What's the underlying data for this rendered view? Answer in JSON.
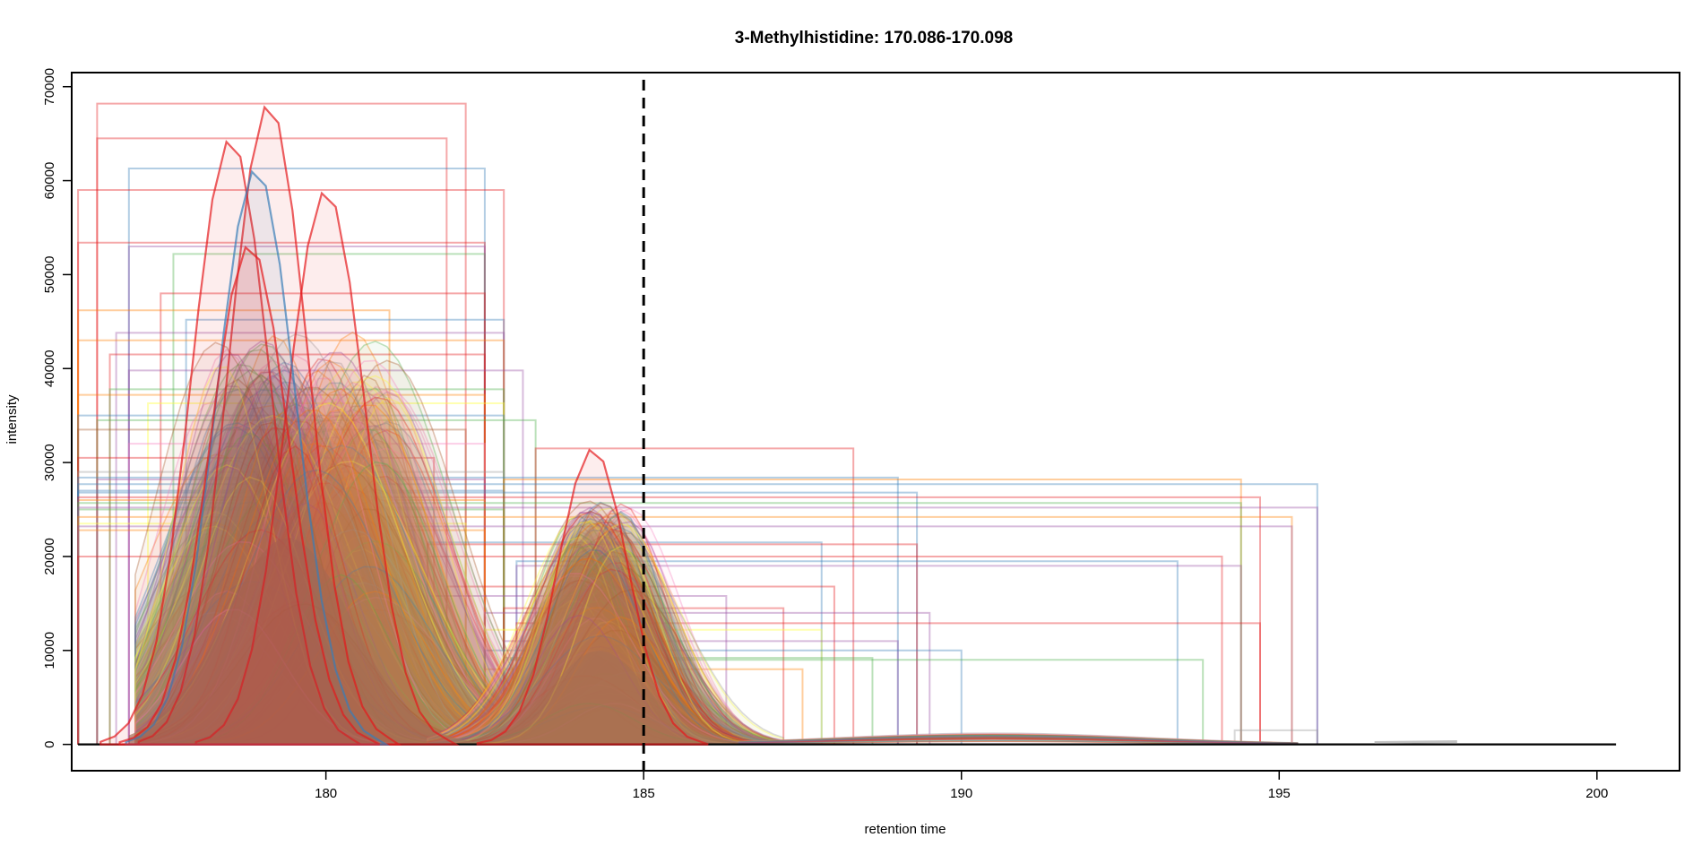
{
  "chart_data": {
    "type": "line",
    "title": "3-Methylhistidine: 170.086-170.098",
    "xlabel": "retention time",
    "ylabel": "intensity",
    "xlim": [
      176,
      201.3
    ],
    "ylim": [
      -2800,
      71500
    ],
    "x_ticks": [
      180,
      185,
      190,
      195,
      200
    ],
    "x_tick_labels": [
      "180",
      "185",
      "190",
      "195",
      "200"
    ],
    "y_ticks": [
      0,
      10000,
      20000,
      30000,
      40000,
      50000,
      60000,
      70000
    ],
    "y_tick_labels": [
      "0",
      "10000",
      "20000",
      "30000",
      "40000",
      "50000",
      "60000",
      "70000"
    ],
    "vertical_reference_line": {
      "x": 185,
      "style": "dashed",
      "color": "#000000"
    },
    "grid": false,
    "legend": "none",
    "palette": [
      "#e41a1c",
      "#377eb8",
      "#4daf4a",
      "#984ea3",
      "#ff7f00",
      "#ffff33",
      "#a65628",
      "#f781bf",
      "#999999"
    ],
    "peak_groups": [
      {
        "name": "peak-group-1",
        "apex_rt_range": [
          178.2,
          181.0
        ],
        "typical_apex_rt": 179.3,
        "typical_apex_intensity": 33000,
        "max_apex_intensity": 68200,
        "rt_start_range": [
          176.1,
          178.0
        ],
        "rt_end_range": [
          181.8,
          183.0
        ]
      },
      {
        "name": "peak-group-2",
        "apex_rt_range": [
          183.9,
          184.8
        ],
        "typical_apex_rt": 184.3,
        "typical_apex_intensity": 15000,
        "max_apex_intensity": 31500,
        "rt_start_range": [
          181.6,
          183.0
        ],
        "rt_end_range": [
          185.3,
          195.6
        ]
      },
      {
        "name": "tail-region",
        "apex_rt_range": [
          188.0,
          193.0
        ],
        "typical_apex_intensity": 1000,
        "rt_end": 200.3
      }
    ],
    "highlighted_peaks": [
      {
        "apex_rt": 179.1,
        "apex_intensity": 68200,
        "color": "#e41a1c"
      },
      {
        "apex_rt": 178.5,
        "apex_intensity": 64500,
        "color": "#e41a1c"
      },
      {
        "apex_rt": 180.0,
        "apex_intensity": 59000,
        "color": "#e41a1c"
      },
      {
        "apex_rt": 178.9,
        "apex_intensity": 61300,
        "color": "#377eb8"
      },
      {
        "apex_rt": 178.8,
        "apex_intensity": 53200,
        "color": "#e41a1c"
      },
      {
        "apex_rt": 184.2,
        "apex_intensity": 31500,
        "color": "#e41a1c"
      }
    ],
    "integration_boxes": [
      {
        "x": [
          176.4,
          182.2
        ],
        "y_top": 68200,
        "color": "#e41a1c"
      },
      {
        "x": [
          176.4,
          181.9
        ],
        "y_top": 64500,
        "color": "#e41a1c"
      },
      {
        "x": [
          176.9,
          182.5
        ],
        "y_top": 61300,
        "color": "#377eb8"
      },
      {
        "x": [
          176.1,
          182.8
        ],
        "y_top": 59000,
        "color": "#e41a1c"
      },
      {
        "x": [
          176.1,
          182.5
        ],
        "y_top": 53400,
        "color": "#e41a1c"
      },
      {
        "x": [
          177.6,
          182.5
        ],
        "y_top": 52200,
        "color": "#4daf4a"
      },
      {
        "x": [
          176.9,
          182.5
        ],
        "y_top": 53000,
        "color": "#984ea3"
      },
      {
        "x": [
          177.4,
          182.5
        ],
        "y_top": 48000,
        "color": "#e41a1c"
      },
      {
        "x": [
          176.1,
          181.0
        ],
        "y_top": 46200,
        "color": "#ff7f00"
      },
      {
        "x": [
          177.8,
          182.8
        ],
        "y_top": 45200,
        "color": "#377eb8"
      },
      {
        "x": [
          176.7,
          182.8
        ],
        "y_top": 43800,
        "color": "#984ea3"
      },
      {
        "x": [
          176.1,
          182.8
        ],
        "y_top": 43000,
        "color": "#ff7f00"
      },
      {
        "x": [
          176.6,
          182.5
        ],
        "y_top": 41500,
        "color": "#e41a1c"
      },
      {
        "x": [
          176.9,
          183.1
        ],
        "y_top": 39800,
        "color": "#984ea3"
      },
      {
        "x": [
          176.6,
          182.8
        ],
        "y_top": 37800,
        "color": "#4daf4a"
      },
      {
        "x": [
          176.1,
          182.5
        ],
        "y_top": 37200,
        "color": "#ff7f00"
      },
      {
        "x": [
          177.2,
          182.8
        ],
        "y_top": 36300,
        "color": "#ffff33"
      },
      {
        "x": [
          176.1,
          182.8
        ],
        "y_top": 35000,
        "color": "#377eb8"
      },
      {
        "x": [
          176.4,
          183.3
        ],
        "y_top": 34500,
        "color": "#4daf4a"
      },
      {
        "x": [
          176.1,
          182.2
        ],
        "y_top": 33500,
        "color": "#a65628"
      },
      {
        "x": [
          176.9,
          182.5
        ],
        "y_top": 32000,
        "color": "#f781bf"
      },
      {
        "x": [
          176.1,
          181.7
        ],
        "y_top": 30500,
        "color": "#e41a1c"
      },
      {
        "x": [
          176.1,
          182.8
        ],
        "y_top": 29000,
        "color": "#999999"
      },
      {
        "x": [
          176.4,
          182.5
        ],
        "y_top": 28200,
        "color": "#984ea3"
      },
      {
        "x": [
          176.1,
          182.8
        ],
        "y_top": 27000,
        "color": "#377eb8"
      },
      {
        "x": [
          176.1,
          182.5
        ],
        "y_top": 26000,
        "color": "#ff7f00"
      },
      {
        "x": [
          176.1,
          182.8
        ],
        "y_top": 25000,
        "color": "#4daf4a"
      },
      {
        "x": [
          176.1,
          182.2
        ],
        "y_top": 23500,
        "color": "#ffff33"
      },
      {
        "x": [
          176.1,
          182.5
        ],
        "y_top": 22800,
        "color": "#ff7f00"
      },
      {
        "x": [
          183.3,
          188.3
        ],
        "y_top": 31500,
        "color": "#e41a1c"
      },
      {
        "x": [
          176.1,
          189.0
        ],
        "y_top": 28400,
        "color": "#377eb8"
      },
      {
        "x": [
          182.8,
          194.4
        ],
        "y_top": 28200,
        "color": "#ff7f00"
      },
      {
        "x": [
          176.1,
          195.6
        ],
        "y_top": 27700,
        "color": "#377eb8"
      },
      {
        "x": [
          176.1,
          189.3
        ],
        "y_top": 26800,
        "color": "#377eb8"
      },
      {
        "x": [
          176.1,
          194.7
        ],
        "y_top": 26300,
        "color": "#e41a1c"
      },
      {
        "x": [
          176.1,
          194.4
        ],
        "y_top": 25700,
        "color": "#4daf4a"
      },
      {
        "x": [
          176.1,
          195.6
        ],
        "y_top": 25200,
        "color": "#984ea3"
      },
      {
        "x": [
          176.1,
          195.2
        ],
        "y_top": 24200,
        "color": "#ff7f00"
      },
      {
        "x": [
          176.1,
          195.2
        ],
        "y_top": 23200,
        "color": "#984ea3"
      },
      {
        "x": [
          181.6,
          187.8
        ],
        "y_top": 21500,
        "color": "#377eb8"
      },
      {
        "x": [
          181.6,
          189.3
        ],
        "y_top": 21300,
        "color": "#e41a1c"
      },
      {
        "x": [
          176.1,
          194.1
        ],
        "y_top": 20000,
        "color": "#e41a1c"
      },
      {
        "x": [
          183.0,
          193.4
        ],
        "y_top": 19500,
        "color": "#377eb8"
      },
      {
        "x": [
          183.0,
          194.4
        ],
        "y_top": 19000,
        "color": "#984ea3"
      },
      {
        "x": [
          181.9,
          188.0
        ],
        "y_top": 16800,
        "color": "#e41a1c"
      },
      {
        "x": [
          181.6,
          186.3
        ],
        "y_top": 15800,
        "color": "#984ea3"
      },
      {
        "x": [
          182.8,
          187.2
        ],
        "y_top": 14500,
        "color": "#e41a1c"
      },
      {
        "x": [
          182.5,
          189.5
        ],
        "y_top": 14000,
        "color": "#984ea3"
      },
      {
        "x": [
          183.0,
          194.7
        ],
        "y_top": 12900,
        "color": "#e41a1c"
      },
      {
        "x": [
          182.5,
          187.8
        ],
        "y_top": 12200,
        "color": "#ffff33"
      },
      {
        "x": [
          182.8,
          189.0
        ],
        "y_top": 11000,
        "color": "#984ea3"
      },
      {
        "x": [
          182.5,
          190.0
        ],
        "y_top": 10000,
        "color": "#377eb8"
      },
      {
        "x": [
          182.8,
          188.6
        ],
        "y_top": 9200,
        "color": "#4daf4a"
      },
      {
        "x": [
          182.8,
          193.8
        ],
        "y_top": 9000,
        "color": "#4daf4a"
      },
      {
        "x": [
          182.5,
          187.5
        ],
        "y_top": 8000,
        "color": "#ff7f00"
      },
      {
        "x": [
          194.3,
          195.6
        ],
        "y_top": 1500,
        "color": "#999999"
      }
    ]
  }
}
